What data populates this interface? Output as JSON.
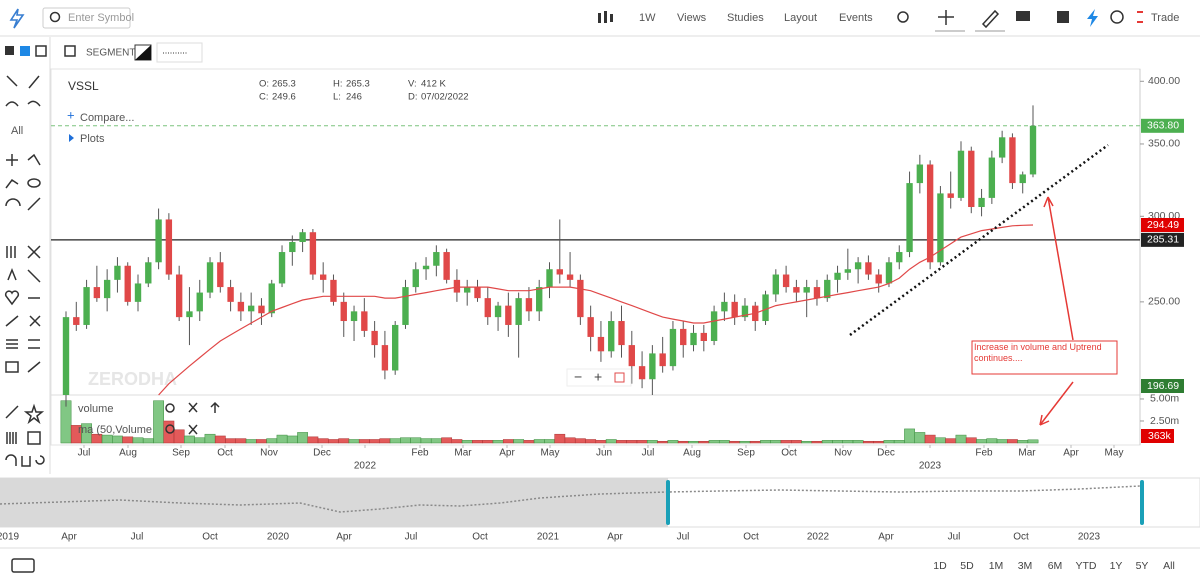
{
  "toolbar": {
    "symbol_placeholder": "Enter Symbol",
    "interval": "1W",
    "menus": [
      "Views",
      "Studies",
      "Layout",
      "Events"
    ],
    "trade": "Trade"
  },
  "subbar": {
    "segment": "SEGMENT:"
  },
  "tools": {
    "filter": "All"
  },
  "legend": {
    "symbol": "VSSL",
    "fields": [
      {
        "label": "O:",
        "value": 265.3
      },
      {
        "label": "H:",
        "value": 265.3
      },
      {
        "label": "V:",
        "value": "412 K"
      },
      {
        "label": "C:",
        "value": 249.6
      },
      {
        "label": "L:",
        "value": 246
      },
      {
        "label": "D:",
        "value": "07/02/2022"
      }
    ],
    "compare": "Compare...",
    "plots": "Plots"
  },
  "watermark": "ZERODHA",
  "chart_data": {
    "type": "candlestick",
    "log_scale": true,
    "ylim": [
      205,
      408
    ],
    "yticks": [
      {
        "value": 400,
        "label": "400.00"
      },
      {
        "value": 350,
        "label": "350.00"
      },
      {
        "value": 300,
        "label": "300.00"
      },
      {
        "value": 250,
        "label": "250.00"
      }
    ],
    "up_color": "#4caf50",
    "down_color": "#e04848",
    "candles": [
      [
        205,
        245,
        200,
        242,
        4.8
      ],
      [
        242,
        250,
        235,
        238,
        2.0
      ],
      [
        238,
        262,
        236,
        258,
        2.2
      ],
      [
        258,
        270,
        250,
        252,
        1.0
      ],
      [
        252,
        268,
        245,
        262,
        0.9
      ],
      [
        262,
        275,
        255,
        270,
        0.8
      ],
      [
        270,
        272,
        248,
        250,
        0.7
      ],
      [
        250,
        265,
        245,
        260,
        0.6
      ],
      [
        260,
        275,
        258,
        272,
        0.5
      ],
      [
        272,
        305,
        268,
        298,
        4.8
      ],
      [
        298,
        302,
        262,
        265,
        2.5
      ],
      [
        265,
        270,
        240,
        242,
        1.5
      ],
      [
        242,
        258,
        228,
        245,
        0.8
      ],
      [
        245,
        262,
        240,
        255,
        0.6
      ],
      [
        255,
        275,
        252,
        272,
        1.0
      ],
      [
        272,
        278,
        255,
        258,
        0.8
      ],
      [
        258,
        262,
        245,
        250,
        0.5
      ],
      [
        250,
        255,
        240,
        245,
        0.5
      ],
      [
        245,
        255,
        238,
        248,
        0.4
      ],
      [
        248,
        252,
        238,
        244,
        0.4
      ],
      [
        244,
        262,
        242,
        260,
        0.5
      ],
      [
        260,
        282,
        258,
        278,
        0.9
      ],
      [
        278,
        288,
        270,
        284,
        0.8
      ],
      [
        284,
        292,
        278,
        290,
        1.2
      ],
      [
        290,
        292,
        262,
        265,
        0.7
      ],
      [
        265,
        272,
        255,
        262,
        0.5
      ],
      [
        262,
        265,
        248,
        250,
        0.4
      ],
      [
        250,
        255,
        232,
        240,
        0.5
      ],
      [
        240,
        248,
        230,
        245,
        0.4
      ],
      [
        245,
        252,
        232,
        235,
        0.4
      ],
      [
        235,
        240,
        222,
        228,
        0.4
      ],
      [
        228,
        235,
        212,
        216,
        0.5
      ],
      [
        216,
        240,
        214,
        238,
        0.5
      ],
      [
        238,
        262,
        236,
        258,
        0.6
      ],
      [
        258,
        272,
        255,
        268,
        0.6
      ],
      [
        268,
        275,
        262,
        270,
        0.5
      ],
      [
        270,
        282,
        264,
        278,
        0.5
      ],
      [
        278,
        280,
        260,
        262,
        0.6
      ],
      [
        262,
        268,
        250,
        255,
        0.4
      ],
      [
        255,
        262,
        248,
        258,
        0.3
      ],
      [
        258,
        262,
        250,
        252,
        0.3
      ],
      [
        252,
        258,
        238,
        242,
        0.3
      ],
      [
        242,
        250,
        235,
        248,
        0.3
      ],
      [
        248,
        255,
        232,
        238,
        0.4
      ],
      [
        238,
        255,
        222,
        252,
        0.4
      ],
      [
        252,
        258,
        240,
        245,
        0.3
      ],
      [
        245,
        262,
        240,
        258,
        0.4
      ],
      [
        258,
        272,
        252,
        268,
        0.4
      ],
      [
        268,
        298,
        260,
        265,
        1.0
      ],
      [
        265,
        278,
        258,
        262,
        0.6
      ],
      [
        262,
        265,
        238,
        242,
        0.5
      ],
      [
        242,
        248,
        225,
        232,
        0.4
      ],
      [
        232,
        240,
        220,
        225,
        0.3
      ],
      [
        225,
        245,
        222,
        240,
        0.4
      ],
      [
        240,
        248,
        222,
        228,
        0.3
      ],
      [
        228,
        235,
        210,
        218,
        0.3
      ],
      [
        218,
        225,
        208,
        212,
        0.3
      ],
      [
        212,
        228,
        205,
        224,
        0.3
      ],
      [
        224,
        232,
        215,
        218,
        0.2
      ],
      [
        218,
        240,
        216,
        236,
        0.3
      ],
      [
        236,
        240,
        222,
        228,
        0.2
      ],
      [
        228,
        238,
        225,
        234,
        0.2
      ],
      [
        234,
        238,
        225,
        230,
        0.2
      ],
      [
        230,
        248,
        228,
        245,
        0.3
      ],
      [
        245,
        255,
        240,
        250,
        0.3
      ],
      [
        250,
        254,
        238,
        242,
        0.2
      ],
      [
        242,
        252,
        240,
        248,
        0.2
      ],
      [
        248,
        250,
        235,
        240,
        0.2
      ],
      [
        240,
        256,
        238,
        254,
        0.3
      ],
      [
        254,
        268,
        250,
        265,
        0.3
      ],
      [
        265,
        270,
        255,
        258,
        0.3
      ],
      [
        258,
        262,
        250,
        255,
        0.3
      ],
      [
        255,
        262,
        242,
        258,
        0.2
      ],
      [
        258,
        262,
        248,
        252,
        0.2
      ],
      [
        252,
        265,
        250,
        262,
        0.3
      ],
      [
        262,
        270,
        255,
        266,
        0.3
      ],
      [
        266,
        280,
        262,
        268,
        0.3
      ],
      [
        268,
        275,
        260,
        272,
        0.3
      ],
      [
        272,
        276,
        262,
        265,
        0.2
      ],
      [
        265,
        268,
        255,
        260,
        0.2
      ],
      [
        260,
        275,
        258,
        272,
        0.3
      ],
      [
        272,
        282,
        268,
        278,
        0.3
      ],
      [
        278,
        330,
        275,
        322,
        1.6
      ],
      [
        322,
        342,
        315,
        335,
        1.2
      ],
      [
        335,
        338,
        268,
        272,
        0.9
      ],
      [
        272,
        320,
        270,
        315,
        0.6
      ],
      [
        315,
        330,
        305,
        312,
        0.5
      ],
      [
        312,
        352,
        310,
        345,
        0.9
      ],
      [
        345,
        348,
        302,
        306,
        0.6
      ],
      [
        306,
        318,
        300,
        312,
        0.4
      ],
      [
        312,
        345,
        308,
        340,
        0.5
      ],
      [
        340,
        360,
        336,
        355,
        0.4
      ],
      [
        355,
        358,
        318,
        322,
        0.4
      ],
      [
        322,
        330,
        315,
        328,
        0.3
      ],
      [
        328,
        380,
        326,
        363.8,
        0.363
      ]
    ],
    "ma": [
      null,
      null,
      null,
      null,
      null,
      null,
      null,
      null,
      null,
      205,
      210,
      214,
      218,
      222,
      226,
      230,
      233,
      236,
      239,
      242,
      245,
      247,
      249,
      251,
      252,
      253,
      253,
      253,
      253,
      253,
      253,
      252,
      252,
      253,
      254,
      255,
      256,
      257,
      258,
      258,
      258,
      258,
      257,
      256,
      256,
      256,
      257,
      258,
      258,
      258,
      257,
      256,
      254,
      252,
      250,
      248,
      246,
      244,
      242,
      241,
      240,
      239,
      239,
      240,
      241,
      242,
      243,
      244,
      246,
      248,
      249,
      250,
      251,
      252,
      253,
      254,
      255,
      256,
      257,
      258,
      260,
      263,
      268,
      272,
      275,
      279,
      283,
      287,
      289,
      291,
      292,
      293,
      294,
      294.3,
      294.49
    ],
    "ma_color": "#e04848",
    "price_tags": [
      {
        "value": 363.8,
        "label": "363.80",
        "color": "#4caf50"
      },
      {
        "value": 294.49,
        "label": "294.49",
        "color": "#e00000"
      },
      {
        "value": 285.31,
        "label": "285.31",
        "color": "#222222"
      },
      {
        "value": 196.69,
        "label": "196.69",
        "color": "#2e7d32"
      }
    ],
    "vlim": [
      0,
      5.45
    ],
    "vticks": [
      {
        "value": 5,
        "label": "5.00m"
      },
      {
        "value": 2.5,
        "label": "2.50m"
      }
    ],
    "volume_tag": {
      "value": 0.363,
      "label": "363k"
    },
    "volume_legend": [
      "volume",
      "ma (50,Volume"
    ],
    "months": [
      "Jul",
      "Aug",
      "Sep",
      "Oct",
      "Nov",
      "Dec",
      "Feb",
      "Mar",
      "Apr",
      "May",
      "Jun",
      "Jul",
      "Aug",
      "Sep",
      "Oct",
      "Nov",
      "Dec",
      "Feb",
      "Mar",
      "Apr",
      "May"
    ],
    "years": [
      "2022",
      "2023"
    ]
  },
  "annotation": "Increase in volume and Uptrend continues....",
  "navigator": {
    "labels": [
      "2019",
      "Apr",
      "Jul",
      "Oct",
      "2020",
      "Apr",
      "Jul",
      "Oct",
      "2021",
      "Apr",
      "Jul",
      "Oct",
      "2022",
      "Apr",
      "Jul",
      "Oct",
      "2023"
    ]
  },
  "ranges": [
    "1D",
    "5D",
    "1M",
    "3M",
    "6M",
    "YTD",
    "1Y",
    "5Y",
    "All"
  ]
}
